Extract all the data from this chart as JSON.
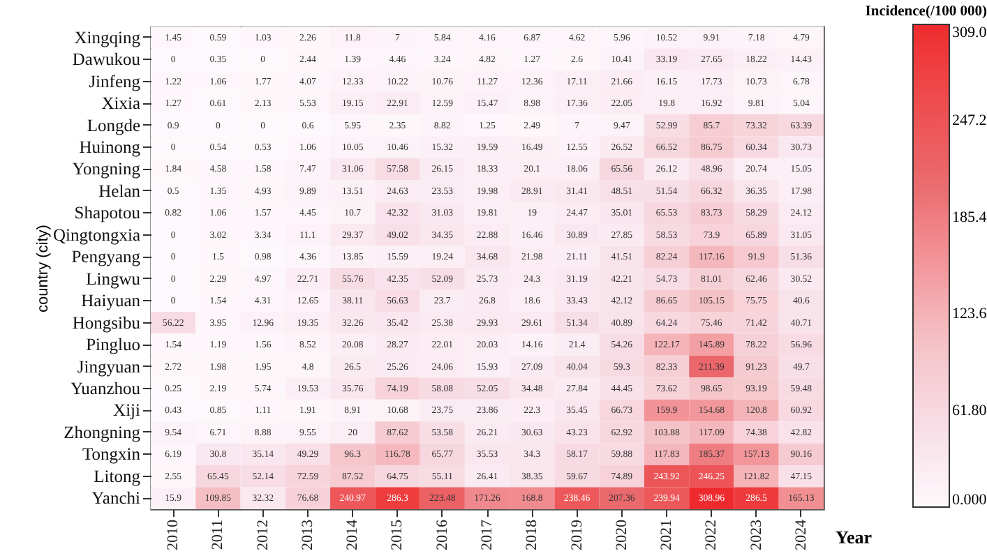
{
  "chart_data": {
    "type": "heatmap",
    "xlabel": "Year",
    "ylabel": "country (city)",
    "clabel": "Incidence(/100 000)",
    "categories": [
      "2010",
      "2011",
      "2012",
      "2013",
      "2014",
      "2015",
      "2016",
      "2017",
      "2018",
      "2019",
      "2020",
      "2021",
      "2022",
      "2023",
      "2024"
    ],
    "y_categories": [
      "Xingqing",
      "Dawukou",
      "Jinfeng",
      "Xixia",
      "Longde",
      "Huinong",
      "Yongning",
      "Helan",
      "Shapotou",
      "Qingtongxia",
      "Pengyang",
      "Lingwu",
      "Haiyuan",
      "Hongsibu",
      "Pingluo",
      "Jingyuan",
      "Yuanzhou",
      "Xiji",
      "Zhongning",
      "Tongxin",
      "Litong",
      "Yanchi"
    ],
    "cells": [
      [
        1.45,
        0.59,
        1.03,
        2.26,
        11.8,
        7,
        5.84,
        4.16,
        6.87,
        4.62,
        5.96,
        10.52,
        9.91,
        7.18,
        4.79
      ],
      [
        0,
        0.35,
        0,
        2.44,
        1.39,
        4.46,
        3.24,
        4.82,
        1.27,
        2.6,
        10.41,
        33.19,
        27.65,
        18.22,
        14.43
      ],
      [
        1.22,
        1.06,
        1.77,
        4.07,
        12.33,
        10.22,
        10.76,
        11.27,
        12.36,
        17.11,
        21.66,
        16.15,
        17.73,
        10.73,
        6.78
      ],
      [
        1.27,
        0.61,
        2.13,
        5.53,
        19.15,
        22.91,
        12.59,
        15.47,
        8.98,
        17.36,
        22.05,
        19.8,
        16.92,
        9.81,
        5.04
      ],
      [
        0.9,
        0,
        0,
        0.6,
        5.95,
        2.35,
        8.82,
        1.25,
        2.49,
        7,
        9.47,
        52.99,
        85.7,
        73.32,
        63.39
      ],
      [
        0,
        0.54,
        0.53,
        1.06,
        10.05,
        10.46,
        15.32,
        19.59,
        16.49,
        12.55,
        26.52,
        66.52,
        86.75,
        60.34,
        30.73
      ],
      [
        1.84,
        4.58,
        1.58,
        7.47,
        31.06,
        57.58,
        26.15,
        18.33,
        20.1,
        18.06,
        65.56,
        26.12,
        48.96,
        20.74,
        15.05
      ],
      [
        0.5,
        1.35,
        4.93,
        9.89,
        13.51,
        24.63,
        23.53,
        19.98,
        28.91,
        31.41,
        48.51,
        51.54,
        66.32,
        36.35,
        17.98
      ],
      [
        0.82,
        1.06,
        1.57,
        4.45,
        10.7,
        42.32,
        31.03,
        19.81,
        19,
        24.47,
        35.01,
        65.53,
        83.73,
        58.29,
        24.12
      ],
      [
        0,
        3.02,
        3.34,
        11.1,
        29.37,
        49.02,
        34.35,
        22.88,
        16.46,
        30.89,
        27.85,
        58.53,
        73.9,
        65.89,
        31.05
      ],
      [
        0,
        1.5,
        0.98,
        4.36,
        13.85,
        15.59,
        19.24,
        34.68,
        21.98,
        21.11,
        41.51,
        82.24,
        117.16,
        91.9,
        51.36
      ],
      [
        0,
        2.29,
        4.97,
        22.71,
        55.76,
        42.35,
        52.09,
        25.73,
        24.3,
        31.19,
        42.21,
        54.73,
        81.01,
        62.46,
        30.52
      ],
      [
        0,
        1.54,
        4.31,
        12.65,
        38.11,
        56.63,
        23.7,
        26.8,
        18.6,
        33.43,
        42.12,
        86.65,
        105.15,
        75.75,
        40.6
      ],
      [
        56.22,
        3.95,
        12.96,
        19.35,
        32.26,
        35.42,
        25.38,
        29.93,
        29.61,
        51.34,
        40.89,
        64.24,
        75.46,
        71.42,
        40.71
      ],
      [
        1.54,
        1.19,
        1.56,
        8.52,
        20.08,
        28.27,
        22.01,
        20.03,
        14.16,
        21.4,
        54.26,
        122.17,
        145.89,
        78.22,
        56.96
      ],
      [
        2.72,
        1.98,
        1.95,
        4.8,
        26.5,
        25.26,
        24.06,
        15.93,
        27.09,
        40.04,
        59.3,
        82.33,
        211.39,
        91.23,
        49.7
      ],
      [
        0.25,
        2.19,
        5.74,
        19.53,
        35.76,
        74.19,
        58.08,
        52.05,
        34.48,
        27.84,
        44.45,
        73.62,
        98.65,
        93.19,
        59.48
      ],
      [
        0.43,
        0.85,
        1.11,
        1.91,
        8.91,
        10.68,
        23.75,
        23.86,
        22.3,
        35.45,
        66.73,
        159.9,
        154.68,
        120.8,
        60.92
      ],
      [
        9.54,
        6.71,
        8.88,
        9.55,
        20,
        87.62,
        53.58,
        26.21,
        30.63,
        43.23,
        62.92,
        103.88,
        117.09,
        74.38,
        42.82
      ],
      [
        6.19,
        30.8,
        35.14,
        49.29,
        96.3,
        116.78,
        65.77,
        35.53,
        34.3,
        58.17,
        59.88,
        117.83,
        185.37,
        157.13,
        90.16
      ],
      [
        2.55,
        65.45,
        52.14,
        72.59,
        87.52,
        64.75,
        55.11,
        26.41,
        38.35,
        59.67,
        74.89,
        243.92,
        246.25,
        121.82,
        47.15
      ],
      [
        15.9,
        109.85,
        32.32,
        76.68,
        240.97,
        286.3,
        223.48,
        171.26,
        168.8,
        238.46,
        207.36,
        239.94,
        308.96,
        286.5,
        165.13
      ]
    ],
    "clim": [
      0,
      309
    ],
    "cticks": [
      {
        "value": 0,
        "label": "0.000"
      },
      {
        "value": 61.8,
        "label": "61.80"
      },
      {
        "value": 123.6,
        "label": "123.6"
      },
      {
        "value": 185.4,
        "label": "185.4"
      },
      {
        "value": 247.2,
        "label": "247.2"
      },
      {
        "value": 309,
        "label": "309.0"
      }
    ],
    "data_labels": true
  }
}
